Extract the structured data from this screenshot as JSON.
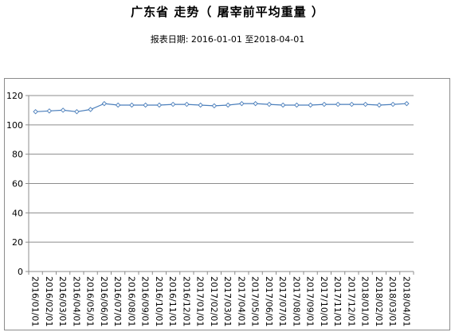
{
  "header": {
    "title": "广东省 走势（ 屠宰前平均重量 ）",
    "subtitle": "报表日期: 2016-01-01 至2018-04-01"
  },
  "chart_data": {
    "type": "line",
    "title": "广东省 走势（ 屠宰前平均重量 ）",
    "xlabel": "",
    "ylabel": "",
    "ylim": [
      0,
      120
    ],
    "yticks": [
      "0",
      "20",
      "40",
      "60",
      "80",
      "100",
      "120"
    ],
    "grid": true,
    "legend": "none",
    "colors": {
      "line": "#4a7ebb",
      "marker_fill": "#ffffff",
      "grid": "#8c8c8c"
    },
    "categories": [
      "2016/01/01",
      "2016/02/01",
      "2016/03/01",
      "2016/04/01",
      "2016/05/01",
      "2016/06/01",
      "2016/07/01",
      "2016/08/01",
      "2016/09/01",
      "2016/10/01",
      "2016/11/01",
      "2016/12/01",
      "2017/01/01",
      "2017/02/01",
      "2017/03/01",
      "2017/04/01",
      "2017/05/01",
      "2017/06/01",
      "2017/07/01",
      "2017/08/01",
      "2017/09/01",
      "2017/10/01",
      "2017/11/01",
      "2017/12/01",
      "2018/01/01",
      "2018/02/01",
      "2018/03/01",
      "2018/04/01"
    ],
    "series": [
      {
        "values": [
          109,
          109.5,
          110,
          109,
          110.5,
          114.5,
          113.5,
          113.5,
          113.5,
          113.5,
          114,
          114,
          113.5,
          113,
          113.5,
          114.5,
          114.5,
          114,
          113.5,
          113.5,
          113.5,
          114,
          114,
          114,
          114,
          113.5,
          114,
          114.5
        ]
      }
    ]
  }
}
